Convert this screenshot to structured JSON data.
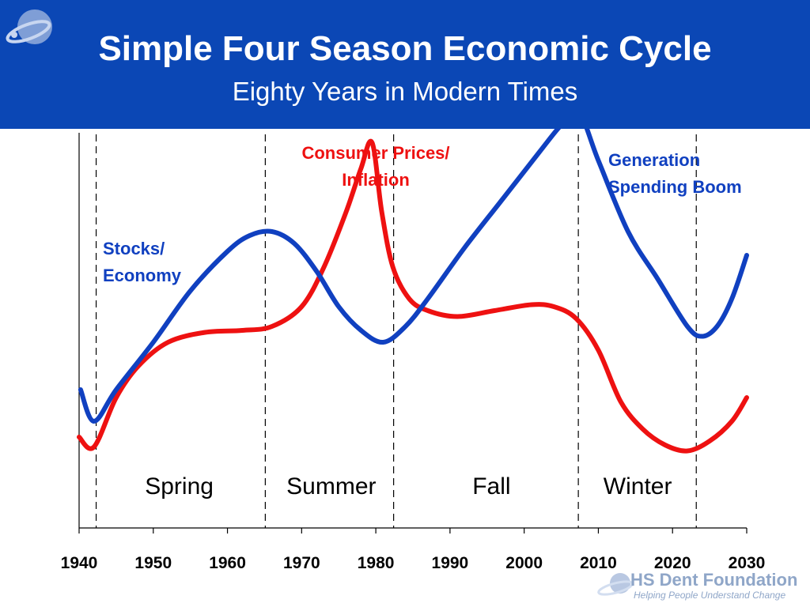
{
  "header": {
    "title": "Simple Four Season Economic Cycle",
    "subtitle": "Eighty Years in Modern Times"
  },
  "colors": {
    "header_bg": "#0b47b5",
    "stocks": "#1040c0",
    "prices": "#ee1111",
    "text": "#000000"
  },
  "chart_data": {
    "type": "line",
    "title": "Simple Four Season Economic Cycle",
    "subtitle": "Eighty Years in Modern Times",
    "xlabel": "",
    "ylabel": "",
    "xlim": [
      1940,
      2030
    ],
    "ylim": [
      0,
      10
    ],
    "x_ticks": [
      1940,
      1950,
      1960,
      1970,
      1980,
      1990,
      2000,
      2010,
      2020,
      2030
    ],
    "grid": false,
    "legend": "none",
    "series": [
      {
        "name": "Stocks/ Economy",
        "color": "#1040c0",
        "label_lines": [
          "Stocks/",
          "Economy"
        ],
        "points": [
          [
            1940.2,
            3.5
          ],
          [
            1942,
            2.7
          ],
          [
            1945,
            3.5
          ],
          [
            1950,
            4.7
          ],
          [
            1955,
            6.0
          ],
          [
            1960,
            7.0
          ],
          [
            1963,
            7.4
          ],
          [
            1966,
            7.5
          ],
          [
            1969,
            7.2
          ],
          [
            1972,
            6.5
          ],
          [
            1975,
            5.6
          ],
          [
            1978,
            5.0
          ],
          [
            1981,
            4.7
          ],
          [
            1984,
            5.1
          ],
          [
            1987,
            5.8
          ],
          [
            1992,
            7.1
          ],
          [
            1997,
            8.3
          ],
          [
            2002,
            9.5
          ],
          [
            2005,
            10.2
          ],
          [
            2007.3,
            10.55
          ],
          [
            2010,
            9.3
          ],
          [
            2014,
            7.5
          ],
          [
            2018,
            6.3
          ],
          [
            2022,
            5.1
          ],
          [
            2024,
            4.85
          ],
          [
            2026,
            5.1
          ],
          [
            2028,
            5.8
          ],
          [
            2030,
            6.9
          ]
        ]
      },
      {
        "name": "Consumer Prices/ Inflation",
        "color": "#ee1111",
        "label_lines": [
          "Consumer Prices/",
          "Inflation"
        ],
        "points": [
          [
            1940,
            2.3
          ],
          [
            1942,
            2.05
          ],
          [
            1945,
            3.3
          ],
          [
            1948,
            4.1
          ],
          [
            1952,
            4.7
          ],
          [
            1957,
            4.95
          ],
          [
            1962,
            5.0
          ],
          [
            1966,
            5.1
          ],
          [
            1970,
            5.6
          ],
          [
            1973,
            6.6
          ],
          [
            1976,
            8.0
          ],
          [
            1978,
            9.1
          ],
          [
            1979.5,
            9.75
          ],
          [
            1980.8,
            8.0
          ],
          [
            1982.3,
            6.6
          ],
          [
            1984.5,
            5.8
          ],
          [
            1987,
            5.5
          ],
          [
            1991,
            5.35
          ],
          [
            1996,
            5.5
          ],
          [
            2001,
            5.65
          ],
          [
            2004,
            5.6
          ],
          [
            2007,
            5.3
          ],
          [
            2010,
            4.5
          ],
          [
            2013,
            3.2
          ],
          [
            2016,
            2.5
          ],
          [
            2019,
            2.1
          ],
          [
            2022,
            1.95
          ],
          [
            2025,
            2.2
          ],
          [
            2028,
            2.7
          ],
          [
            2030,
            3.3
          ]
        ]
      }
    ],
    "season_dividers": [
      1942.3,
      1965.1,
      1982.4,
      2007.3,
      2023.2
    ],
    "seasons": [
      {
        "label": "Spring",
        "x": 1953.5
      },
      {
        "label": "Summer",
        "x": 1974
      },
      {
        "label": "Fall",
        "x": 1995.6
      },
      {
        "label": "Winter",
        "x": 2015.3
      }
    ],
    "annotations": [
      {
        "lines": [
          "Generation",
          "Spending Boom"
        ],
        "color": "#1040c0"
      }
    ]
  },
  "footer": {
    "name": "HS Dent Foundation",
    "tagline": "Helping People Understand Change"
  }
}
